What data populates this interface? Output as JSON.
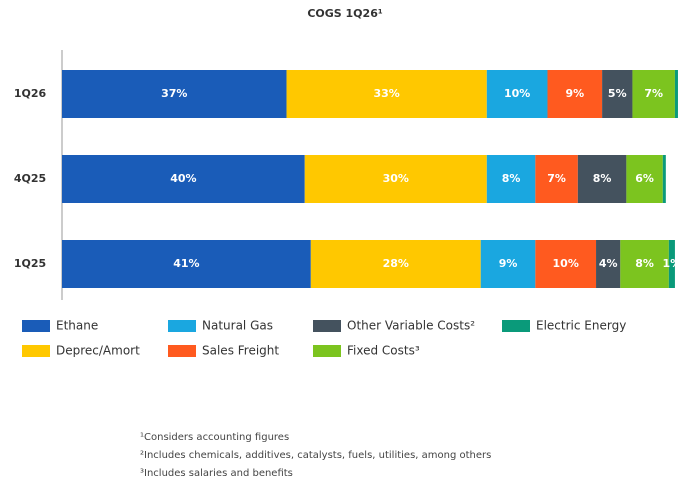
{
  "chart_data": {
    "type": "stacked-barh",
    "title": "COGS 1Q26¹",
    "categories": [
      "1Q26",
      "4Q25",
      "1Q25"
    ],
    "series": [
      {
        "name": "Ethane",
        "color": "#1a5cb8",
        "values": [
          37,
          40,
          41
        ],
        "value_labels": [
          "37%",
          "40%",
          "41%"
        ]
      },
      {
        "name": "Deprec/Amort",
        "color": "#ffc800",
        "values": [
          33,
          30,
          28
        ],
        "value_labels": [
          "33%",
          "30%",
          "28%"
        ]
      },
      {
        "name": "Natural Gas",
        "color": "#1aa7e0",
        "values": [
          10,
          8,
          9
        ],
        "value_labels": [
          "10%",
          "8%",
          "9%"
        ]
      },
      {
        "name": "Sales Freight",
        "color": "#ff5a1f",
        "values": [
          9,
          7,
          10
        ],
        "value_labels": [
          "9%",
          "7%",
          "10%"
        ]
      },
      {
        "name": "Other Variable Costs²",
        "color": "#44525e",
        "values": [
          5,
          8,
          4
        ],
        "value_labels": [
          "5%",
          "8%",
          "4%"
        ]
      },
      {
        "name": "Fixed Costs³",
        "color": "#7cc41f",
        "values": [
          7,
          6,
          8
        ],
        "value_labels": [
          "7%",
          "6%",
          "8%"
        ]
      },
      {
        "name": "Electric Energy",
        "color": "#0a9a7a",
        "values": [
          0.5,
          0.5,
          1
        ],
        "value_labels": [
          null,
          null,
          "1%"
        ]
      }
    ],
    "xlim": [
      0,
      102
    ],
    "footnotes": [
      "¹Considers accounting figures",
      "²Includes chemicals, additives, catalysts, fuels, utilities, among others",
      "³Includes salaries and benefits"
    ]
  }
}
